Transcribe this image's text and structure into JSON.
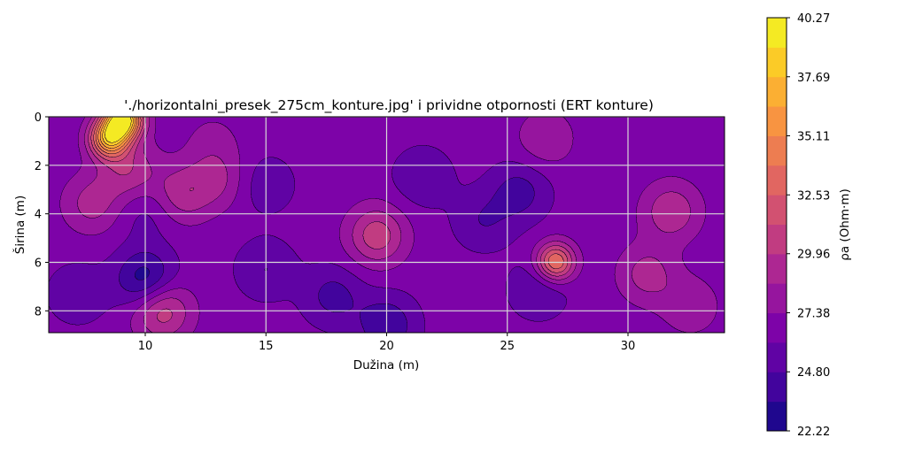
{
  "chart_data": {
    "type": "heatmap",
    "subtype": "filled-contour",
    "title": "'./horizontalni_presek_275cm_konture.jpg' i prividne otpornosti (ERT konture)",
    "xlabel": "Dužina (m)",
    "ylabel": "Širina (m)",
    "xlim": [
      6,
      34
    ],
    "ylim": [
      0,
      8.9
    ],
    "y_inverted": true,
    "x_ticks": [
      "10",
      "15",
      "20",
      "25",
      "30"
    ],
    "x_tick_values": [
      10,
      15,
      20,
      25,
      30
    ],
    "y_ticks": [
      "0",
      "2",
      "4",
      "6",
      "8"
    ],
    "y_tick_values": [
      0,
      2,
      4,
      6,
      8
    ],
    "grid": true,
    "colormap": "plasma",
    "colorbar": {
      "label": "ρa (Ohm·m)",
      "min": 22.22,
      "max": 40.27,
      "tick_labels": [
        "40.27",
        "37.69",
        "35.11",
        "32.53",
        "29.96",
        "27.38",
        "24.80",
        "22.22"
      ],
      "tick_values": [
        40.27,
        37.69,
        35.11,
        32.53,
        29.96,
        27.38,
        24.8,
        22.22
      ],
      "levels": 14
    },
    "background_value": 26.6,
    "features": [
      {
        "kind": "high",
        "x": 9.1,
        "y": 0.1,
        "value": 40.0
      },
      {
        "kind": "high",
        "x": 8.5,
        "y": 0.9,
        "value": 36.8
      },
      {
        "kind": "high",
        "x": 9.3,
        "y": 2.2,
        "value": 29.8
      },
      {
        "kind": "high",
        "x": 11.5,
        "y": 3.2,
        "value": 29.5
      },
      {
        "kind": "high",
        "x": 7.8,
        "y": 3.6,
        "value": 29.2
      },
      {
        "kind": "high",
        "x": 13.0,
        "y": 2.6,
        "value": 28.8
      },
      {
        "kind": "high",
        "x": 12.8,
        "y": 1.0,
        "value": 27.7
      },
      {
        "kind": "high",
        "x": 19.6,
        "y": 4.9,
        "value": 30.8
      },
      {
        "kind": "high",
        "x": 27.0,
        "y": 6.0,
        "value": 34.2
      },
      {
        "kind": "high",
        "x": 26.6,
        "y": 0.9,
        "value": 28.5
      },
      {
        "kind": "high",
        "x": 30.8,
        "y": 6.5,
        "value": 29.3
      },
      {
        "kind": "high",
        "x": 31.8,
        "y": 3.9,
        "value": 29.8
      },
      {
        "kind": "high",
        "x": 10.7,
        "y": 8.0,
        "value": 30.9
      },
      {
        "kind": "high",
        "x": 32.6,
        "y": 7.8,
        "value": 28.4
      },
      {
        "kind": "low",
        "x": 10.0,
        "y": 6.7,
        "value": 22.6
      },
      {
        "kind": "low",
        "x": 21.5,
        "y": 2.5,
        "value": 24.9
      },
      {
        "kind": "low",
        "x": 24.0,
        "y": 4.3,
        "value": 24.9
      },
      {
        "kind": "low",
        "x": 17.8,
        "y": 7.4,
        "value": 24.3
      },
      {
        "kind": "low",
        "x": 20.0,
        "y": 8.6,
        "value": 23.6
      },
      {
        "kind": "low",
        "x": 7.2,
        "y": 7.3,
        "value": 25.0
      },
      {
        "kind": "low",
        "x": 25.5,
        "y": 3.1,
        "value": 24.2
      },
      {
        "kind": "low",
        "x": 26.3,
        "y": 7.1,
        "value": 24.8
      },
      {
        "kind": "low",
        "x": 15.0,
        "y": 6.3,
        "value": 24.8
      },
      {
        "kind": "low",
        "x": 15.0,
        "y": 2.8,
        "value": 25.2
      },
      {
        "kind": "low",
        "x": 10.1,
        "y": 3.9,
        "value": 25.4
      }
    ]
  }
}
